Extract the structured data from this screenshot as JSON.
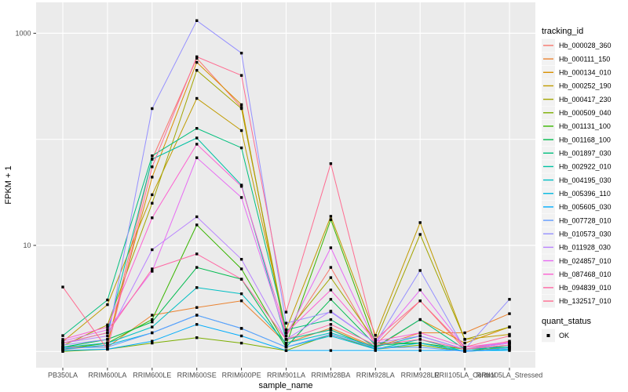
{
  "chart_data": {
    "type": "line",
    "title": "",
    "xlabel": "sample_name",
    "ylabel": "FPKM + 1",
    "y_scale": "log10",
    "ylim": [
      0.7,
      1960
    ],
    "grid": true,
    "legend_position": "right",
    "legend_title": "tracking_id",
    "legend2_title": "quant_status",
    "legend2_items": [
      {
        "label": "OK",
        "shape": "black-square"
      }
    ],
    "y_gridlines": [
      1,
      10,
      100,
      1000
    ],
    "y_ticks": [
      {
        "v": 10,
        "label": "10"
      },
      {
        "v": 1000,
        "label": "1000"
      }
    ],
    "categories": [
      "PB350LA",
      "RRIM600LA",
      "RRIM600LE",
      "RRIM600SE",
      "RRIM600PE",
      "RRIM901LA",
      "RRIM928BA",
      "RRIM928LA",
      "RRIM928LE",
      "RRII105LA_Control",
      "RRII105LA_Stressed"
    ],
    "point_shape": "black-square",
    "series": [
      {
        "name": "Hb_000028_360",
        "color": "#F8766D",
        "values": [
          1.04,
          1.15,
          65,
          580,
          200,
          1.4,
          6.2,
          1.15,
          3.0,
          1.05,
          1.25
        ]
      },
      {
        "name": "Hb_000111_150",
        "color": "#EA8331",
        "values": [
          1.1,
          1.1,
          2.2,
          2.6,
          3.0,
          1.2,
          1.66,
          1.1,
          1.5,
          1.5,
          2.27
        ]
      },
      {
        "name": "Hb_000134_010",
        "color": "#D89000",
        "values": [
          1.05,
          1.21,
          44,
          532,
          212,
          1.3,
          1.6,
          1.08,
          2.0,
          1.2,
          1.7
        ]
      },
      {
        "name": "Hb_000252_190",
        "color": "#C09B00",
        "values": [
          1.24,
          2.76,
          30,
          243,
          121,
          1.6,
          18.8,
          1.42,
          16.4,
          1.3,
          1.45
        ]
      },
      {
        "name": "Hb_000417_230",
        "color": "#A3A500",
        "values": [
          1.13,
          1.78,
          25,
          447,
          195,
          1.5,
          4.97,
          1.25,
          12.7,
          1.3,
          1.7
        ]
      },
      {
        "name": "Hb_000509_040",
        "color": "#7CAE00",
        "values": [
          1.0,
          1.05,
          1.2,
          1.35,
          1.2,
          1.02,
          1.45,
          1.05,
          1.15,
          1.0,
          1.1
        ]
      },
      {
        "name": "Hb_001131_100",
        "color": "#39B600",
        "values": [
          1.05,
          1.2,
          2.0,
          15.6,
          6.0,
          1.15,
          17.5,
          1.2,
          1.2,
          1.05,
          1.1
        ]
      },
      {
        "name": "Hb_001168_100",
        "color": "#00BB4E",
        "values": [
          1.1,
          1.3,
          1.9,
          6.2,
          4.8,
          1.1,
          3.1,
          1.15,
          1.2,
          1.0,
          1.15
        ]
      },
      {
        "name": "Hb_001897_030",
        "color": "#00BF7D",
        "values": [
          1.41,
          3.06,
          70,
          127,
          83,
          1.6,
          2.0,
          1.1,
          2.0,
          1.05,
          1.2
        ]
      },
      {
        "name": "Hb_002922_010",
        "color": "#00C1A3",
        "values": [
          1.2,
          1.5,
          65,
          103,
          37,
          1.3,
          1.6,
          1.05,
          1.3,
          1.0,
          1.05
        ]
      },
      {
        "name": "Hb_004195_030",
        "color": "#00BFC4",
        "values": [
          1.1,
          1.2,
          1.7,
          4.0,
          3.5,
          1.2,
          1.5,
          1.1,
          1.4,
          1.05,
          1.1
        ]
      },
      {
        "name": "Hb_005396_110",
        "color": "#00B8E0",
        "values": [
          1.05,
          1.15,
          1.5,
          2.2,
          1.65,
          1.1,
          1.4,
          1.05,
          1.2,
          1.0,
          1.05
        ]
      },
      {
        "name": "Hb_005605_030",
        "color": "#00ACFC",
        "values": [
          1.02,
          1.05,
          1.25,
          1.8,
          1.4,
          1.02,
          1.02,
          1.02,
          1.02,
          1.02,
          1.02
        ]
      },
      {
        "name": "Hb_007728_010",
        "color": "#619CFF",
        "values": [
          1.08,
          1.1,
          1.5,
          2.2,
          1.65,
          1.1,
          1.45,
          1.08,
          1.1,
          1.0,
          1.08
        ]
      },
      {
        "name": "Hb_010573_030",
        "color": "#9590FF",
        "values": [
          1.15,
          1.3,
          195,
          1315,
          650,
          1.85,
          2.36,
          1.2,
          5.8,
          1.05,
          3.1
        ]
      },
      {
        "name": "Hb_011928_030",
        "color": "#B983FF",
        "values": [
          1.2,
          1.4,
          9.1,
          18.6,
          7.4,
          1.3,
          2.4,
          1.2,
          1.4,
          1.05,
          1.2
        ]
      },
      {
        "name": "Hb_024857_010",
        "color": "#E76BF3",
        "values": [
          1.25,
          1.6,
          5.7,
          67,
          28.3,
          1.4,
          9.5,
          1.2,
          3.8,
          1.1,
          1.2
        ]
      },
      {
        "name": "Hb_087468_010",
        "color": "#FD61D1",
        "values": [
          1.3,
          1.7,
          18.2,
          90,
          36,
          1.5,
          3.8,
          1.25,
          1.5,
          1.1,
          1.23
        ]
      },
      {
        "name": "Hb_094839_010",
        "color": "#FF67A4",
        "values": [
          1.2,
          1.5,
          6.0,
          8.3,
          4.8,
          1.3,
          1.8,
          1.15,
          1.3,
          1.05,
          1.15
        ]
      },
      {
        "name": "Hb_132517_010",
        "color": "#FF6C91",
        "values": [
          4.05,
          1.05,
          55,
          600,
          400,
          2.35,
          59,
          1.3,
          3.0,
          1.1,
          1.4
        ]
      }
    ],
    "panel_bg": "#EBEBEB",
    "gridline_color": "#FFFFFF",
    "tick_color": "#333333",
    "legend_key_bg": "#F2F2F2"
  }
}
